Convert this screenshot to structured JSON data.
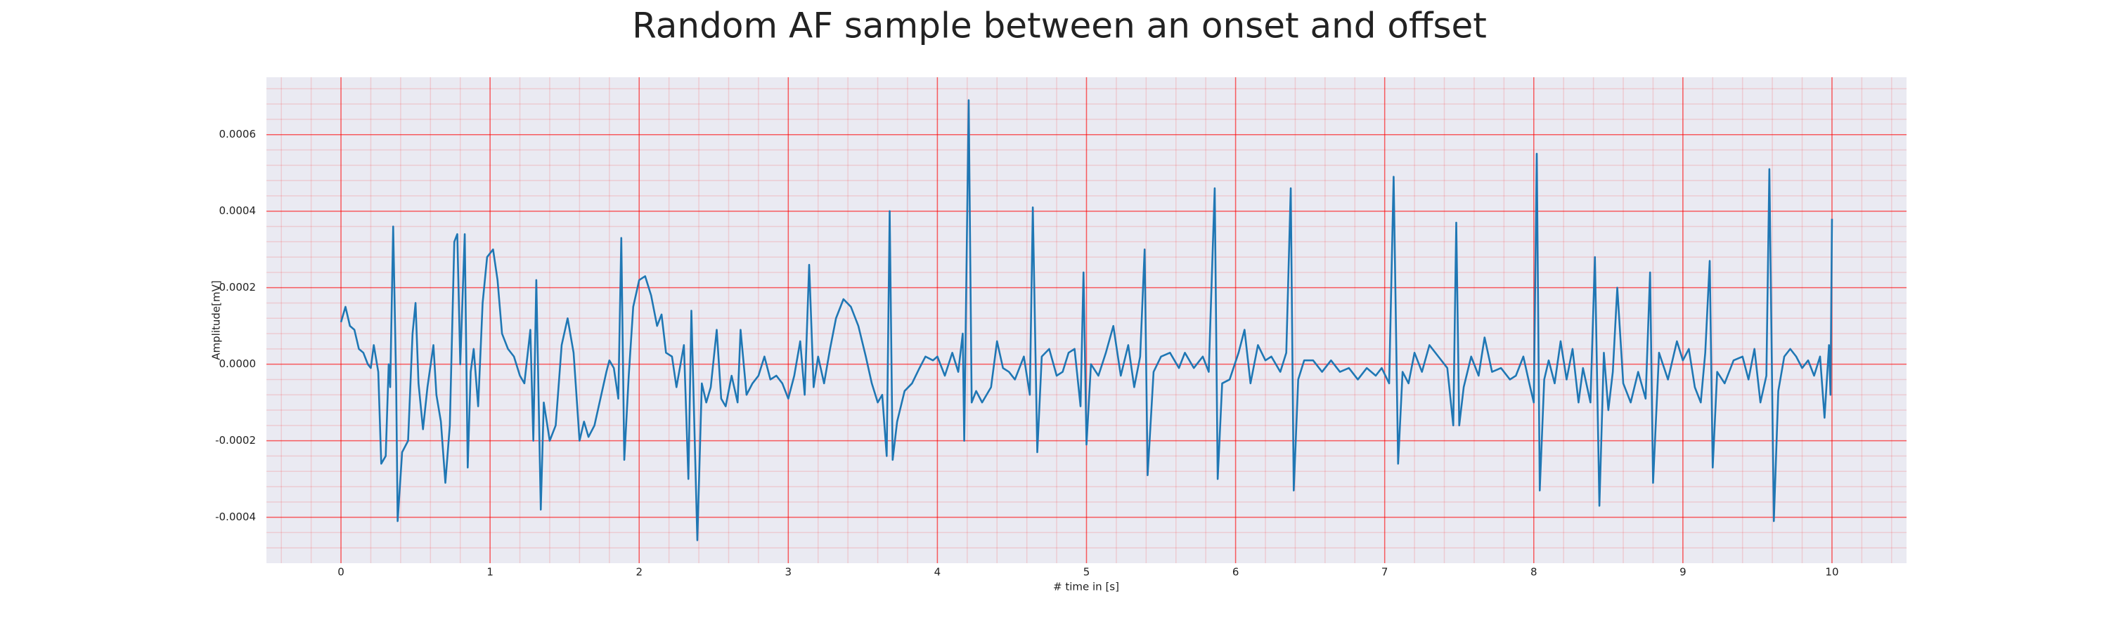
{
  "chart_data": {
    "type": "line",
    "title": "Random AF sample between an onset and offset",
    "x_label": "# time in [s]",
    "y_label": "Amplitude[mV]",
    "color": "#1f77b4",
    "grid": true,
    "minor_grid": true,
    "xlim": [
      -0.5,
      10.5
    ],
    "ylim": [
      -0.00052,
      0.00075
    ],
    "xticks": [
      0,
      1,
      2,
      3,
      4,
      5,
      6,
      7,
      8,
      9,
      10
    ],
    "yticks": [
      -0.0004,
      -0.0002,
      {
        "value": 0,
        "label": "0.0000"
      },
      0.0002,
      0.0004,
      0.0006
    ],
    "x": [
      0,
      0.03,
      0.06,
      0.09,
      0.12,
      0.15,
      0.18,
      0.2,
      0.22,
      0.25,
      0.27,
      0.3,
      0.32,
      0.33,
      0.35,
      0.37,
      0.38,
      0.41,
      0.45,
      0.48,
      0.5,
      0.52,
      0.55,
      0.58,
      0.62,
      0.64,
      0.67,
      0.7,
      0.73,
      0.76,
      0.78,
      0.8,
      0.83,
      0.85,
      0.87,
      0.89,
      0.92,
      0.95,
      0.98,
      1.02,
      1.05,
      1.08,
      1.12,
      1.16,
      1.2,
      1.23,
      1.27,
      1.29,
      1.31,
      1.34,
      1.36,
      1.4,
      1.44,
      1.48,
      1.52,
      1.56,
      1.6,
      1.63,
      1.66,
      1.7,
      1.74,
      1.78,
      1.8,
      1.83,
      1.86,
      1.88,
      1.9,
      1.93,
      1.96,
      2.0,
      2.04,
      2.08,
      2.12,
      2.15,
      2.18,
      2.22,
      2.25,
      2.3,
      2.33,
      2.35,
      2.39,
      2.42,
      2.45,
      2.48,
      2.52,
      2.55,
      2.58,
      2.62,
      2.66,
      2.68,
      2.72,
      2.76,
      2.8,
      2.84,
      2.88,
      2.92,
      2.96,
      3.0,
      3.04,
      3.08,
      3.11,
      3.14,
      3.17,
      3.2,
      3.24,
      3.28,
      3.32,
      3.37,
      3.42,
      3.47,
      3.52,
      3.56,
      3.6,
      3.63,
      3.66,
      3.68,
      3.7,
      3.73,
      3.78,
      3.83,
      3.88,
      3.92,
      3.97,
      4.0,
      4.05,
      4.1,
      4.14,
      4.17,
      4.18,
      4.21,
      4.23,
      4.26,
      4.3,
      4.36,
      4.4,
      4.44,
      4.48,
      4.52,
      4.58,
      4.62,
      4.64,
      4.67,
      4.7,
      4.75,
      4.8,
      4.84,
      4.88,
      4.92,
      4.96,
      4.98,
      5.0,
      5.03,
      5.08,
      5.13,
      5.18,
      5.23,
      5.28,
      5.32,
      5.36,
      5.39,
      5.41,
      5.45,
      5.5,
      5.56,
      5.62,
      5.66,
      5.72,
      5.78,
      5.82,
      5.86,
      5.88,
      5.91,
      5.96,
      6.02,
      6.06,
      6.1,
      6.15,
      6.2,
      6.24,
      6.3,
      6.34,
      6.37,
      6.39,
      6.42,
      6.46,
      6.52,
      6.58,
      6.64,
      6.7,
      6.76,
      6.82,
      6.88,
      6.94,
      6.98,
      7.03,
      7.06,
      7.09,
      7.12,
      7.16,
      7.2,
      7.25,
      7.3,
      7.36,
      7.42,
      7.46,
      7.48,
      7.5,
      7.53,
      7.58,
      7.63,
      7.67,
      7.72,
      7.78,
      7.84,
      7.88,
      7.93,
      7.97,
      8.0,
      8.02,
      8.04,
      8.07,
      8.1,
      8.14,
      8.18,
      8.22,
      8.26,
      8.3,
      8.33,
      8.38,
      8.41,
      8.44,
      8.47,
      8.5,
      8.53,
      8.56,
      8.6,
      8.65,
      8.7,
      8.75,
      8.78,
      8.8,
      8.84,
      8.9,
      8.96,
      9.0,
      9.04,
      9.08,
      9.12,
      9.15,
      9.18,
      9.2,
      9.23,
      9.28,
      9.34,
      9.4,
      9.44,
      9.48,
      9.52,
      9.56,
      9.58,
      9.61,
      9.64,
      9.68,
      9.72,
      9.76,
      9.8,
      9.84,
      9.88,
      9.92,
      9.95,
      9.98,
      9.99,
      10.0
    ],
    "values": [
      0.00011,
      0.00015,
      0.0001,
      9e-05,
      4e-05,
      3e-05,
      0,
      -1e-05,
      5e-05,
      -2e-05,
      -0.00026,
      -0.00024,
      0,
      -6e-05,
      0.00036,
      -5e-05,
      -0.00041,
      -0.00023,
      -0.0002,
      8e-05,
      0.00016,
      -5e-05,
      -0.00017,
      -6e-05,
      5e-05,
      -8e-05,
      -0.00015,
      -0.00031,
      -0.00016,
      0.00032,
      0.00034,
      0,
      0.00034,
      -0.00027,
      -2e-05,
      4e-05,
      -0.00011,
      0.00016,
      0.00028,
      0.0003,
      0.00022,
      8e-05,
      4e-05,
      2e-05,
      -3e-05,
      -5e-05,
      9e-05,
      -0.0002,
      0.00022,
      -0.00038,
      -0.0001,
      -0.0002,
      -0.00016,
      5e-05,
      0.00012,
      3e-05,
      -0.0002,
      -0.00015,
      -0.00019,
      -0.00016,
      -9e-05,
      -2e-05,
      1e-05,
      -1e-05,
      -9e-05,
      0.00033,
      -0.00025,
      -3e-05,
      0.00015,
      0.00022,
      0.00023,
      0.00018,
      0.0001,
      0.00013,
      3e-05,
      2e-05,
      -6e-05,
      5e-05,
      -0.0003,
      0.00014,
      -0.00046,
      -5e-05,
      -0.0001,
      -6e-05,
      9e-05,
      -9e-05,
      -0.00011,
      -3e-05,
      -0.0001,
      9e-05,
      -8e-05,
      -5e-05,
      -3e-05,
      2e-05,
      -4e-05,
      -3e-05,
      -5e-05,
      -9e-05,
      -3e-05,
      6e-05,
      -8e-05,
      0.00026,
      -6e-05,
      2e-05,
      -5e-05,
      4e-05,
      0.00012,
      0.00017,
      0.00015,
      0.0001,
      2e-05,
      -5e-05,
      -0.0001,
      -8e-05,
      -0.00024,
      0.0004,
      -0.00025,
      -0.00015,
      -7e-05,
      -5e-05,
      -1e-05,
      2e-05,
      1e-05,
      2e-05,
      -3e-05,
      3e-05,
      -2e-05,
      8e-05,
      -0.0002,
      0.00069,
      -0.0001,
      -7e-05,
      -0.0001,
      -6e-05,
      6e-05,
      -1e-05,
      -2e-05,
      -4e-05,
      2e-05,
      -8e-05,
      0.00041,
      -0.00023,
      2e-05,
      4e-05,
      -3e-05,
      -2e-05,
      3e-05,
      4e-05,
      -0.00011,
      0.00024,
      -0.00021,
      0,
      -3e-05,
      3e-05,
      0.0001,
      -3e-05,
      5e-05,
      -6e-05,
      2e-05,
      0.0003,
      -0.00029,
      -2e-05,
      2e-05,
      3e-05,
      -1e-05,
      3e-05,
      -1e-05,
      2e-05,
      -2e-05,
      0.00046,
      -0.0003,
      -5e-05,
      -4e-05,
      3e-05,
      9e-05,
      -5e-05,
      5e-05,
      1e-05,
      2e-05,
      -2e-05,
      3e-05,
      0.00046,
      -0.00033,
      -4e-05,
      1e-05,
      1e-05,
      -2e-05,
      1e-05,
      -2e-05,
      -1e-05,
      -4e-05,
      -1e-05,
      -3e-05,
      -1e-05,
      -5e-05,
      0.00049,
      -0.00026,
      -2e-05,
      -5e-05,
      3e-05,
      -2e-05,
      5e-05,
      2e-05,
      -1e-05,
      -0.00016,
      0.00037,
      -0.00016,
      -6e-05,
      2e-05,
      -3e-05,
      7e-05,
      -2e-05,
      -1e-05,
      -4e-05,
      -3e-05,
      2e-05,
      -5e-05,
      -0.0001,
      0.00055,
      -0.00033,
      -4e-05,
      1e-05,
      -5e-05,
      6e-05,
      -4e-05,
      4e-05,
      -0.0001,
      -1e-05,
      -0.0001,
      0.00028,
      -0.00037,
      3e-05,
      -0.00012,
      -2e-05,
      0.0002,
      -5e-05,
      -0.0001,
      -2e-05,
      -9e-05,
      0.00024,
      -0.00031,
      3e-05,
      -4e-05,
      6e-05,
      1e-05,
      4e-05,
      -6e-05,
      -0.0001,
      3e-05,
      0.00027,
      -0.00027,
      -2e-05,
      -5e-05,
      1e-05,
      2e-05,
      -4e-05,
      4e-05,
      -0.0001,
      -3e-05,
      0.00051,
      -0.00041,
      -7e-05,
      2e-05,
      4e-05,
      2e-05,
      -1e-05,
      1e-05,
      -3e-05,
      2e-05,
      -0.00014,
      5e-05,
      -8e-05,
      0.00038
    ]
  }
}
